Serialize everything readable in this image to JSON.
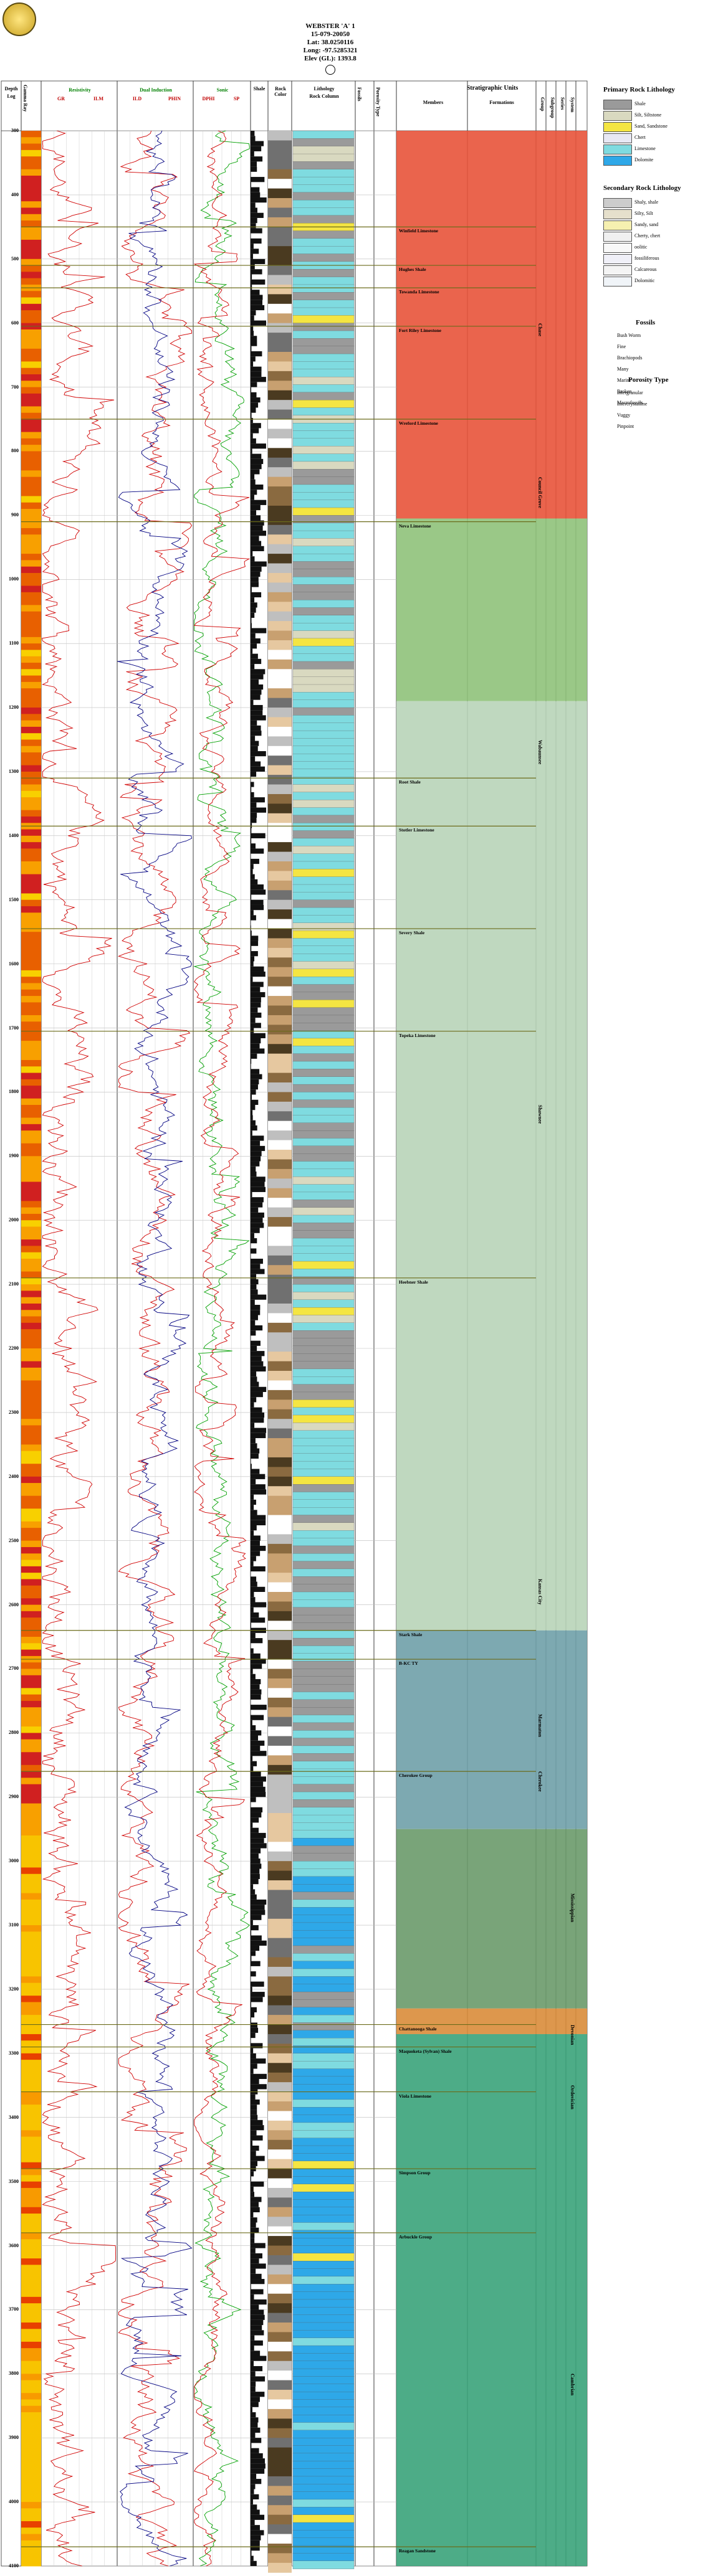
{
  "header": {
    "well_name": "WEBSTER 'A' 1",
    "api": "15-079-20050",
    "lat": "Lat: 38.0250116",
    "long": "Long: -97.5285321",
    "elev": "Elev (GL): 1393.8"
  },
  "columns": {
    "depth": "Depth",
    "log": "Log",
    "gamma": "Gamma Ray",
    "resistivity": "Resistivity",
    "resistivity_curves": [
      "GR",
      "ILM"
    ],
    "resistivity_scale": [
      "0  10",
      "0",
      "1000 0",
      "20"
    ],
    "neutron": "Dual Induction",
    "neutron_curves": [
      "ILD",
      "PHIN"
    ],
    "neutron_scale": [
      "0  10",
      "0",
      "1000 0",
      "20"
    ],
    "sonic": "Sonic",
    "sonic_curves": [
      "DPHI",
      "SP"
    ],
    "sonic_scale": [
      "0.3  0",
      "-30",
      "0",
      "0.1"
    ],
    "shale": "Shale",
    "rock_color": "Rock Color",
    "lithology": "Lithology",
    "rock_column": "Rock Column",
    "fossils": "Fossils",
    "porosity": "Porosity Type",
    "strat_units": "Stratigraphic Units",
    "members": "Members",
    "formations": "Formations",
    "groups": [
      "Group",
      "Subgroup",
      "Series",
      "System"
    ]
  },
  "depth_ticks": [
    "300",
    "400",
    "500",
    "600",
    "700",
    "800",
    "900",
    "1000",
    "1100",
    "1200",
    "1300",
    "1400",
    "1500",
    "1600",
    "1700",
    "1800",
    "1900",
    "2000",
    "2100",
    "2200",
    "2300",
    "2400",
    "2500",
    "2600",
    "2700",
    "2800",
    "2900",
    "3000",
    "3100",
    "3200",
    "3300",
    "3400",
    "3500",
    "3600",
    "3700",
    "3800",
    "3900",
    "4000",
    "4100"
  ],
  "members": [
    {
      "label": "Winfield Limestone",
      "depth": 450
    },
    {
      "label": "Hughes Shale",
      "depth": 510
    },
    {
      "label": "Towanda Limestone",
      "depth": 545
    },
    {
      "label": "Fort Riley Limestone",
      "depth": 605
    },
    {
      "label": "Wreford Limestone",
      "depth": 750
    },
    {
      "label": "Neva Limestone",
      "depth": 910
    },
    {
      "label": "Root Shale",
      "depth": 1310
    },
    {
      "label": "Stotler Limestone",
      "depth": 1385
    },
    {
      "label": "Severy Shale",
      "depth": 1545
    },
    {
      "label": "Topeka Limestone",
      "depth": 1705
    },
    {
      "label": "Heebner Shale",
      "depth": 2090
    },
    {
      "label": "Stark Shale",
      "depth": 2640
    },
    {
      "label": "B-KC TY",
      "depth": 2685
    },
    {
      "label": "Cherokee Group",
      "depth": 2860
    },
    {
      "label": "Chattanooga Shale",
      "depth": 3255
    },
    {
      "label": "Maquoketa (Sylvan) Shale",
      "depth": 3290
    },
    {
      "label": "Viola Limestone",
      "depth": 3360
    },
    {
      "label": "Simpson Group",
      "depth": 3480
    },
    {
      "label": "Arbuckle Group",
      "depth": 3580
    },
    {
      "label": "Reagan Sandstone",
      "depth": 4070
    }
  ],
  "formations": [
    {
      "label": "Chase",
      "depth": 600
    },
    {
      "label": "Council Grove",
      "depth": 840
    },
    {
      "label": "Wabaunsee",
      "depth": 1250
    },
    {
      "label": "Shawnee",
      "depth": 1820
    },
    {
      "label": "Kansas City",
      "depth": 2560
    },
    {
      "label": "Marmaton",
      "depth": 2770
    },
    {
      "label": "Cherokee",
      "depth": 2860
    },
    {
      "label": "Mississippian",
      "depth": 3050
    },
    {
      "label": "Devonian",
      "depth": 3255
    },
    {
      "label": "Ordovician",
      "depth": 3350
    },
    {
      "label": "Cambrian",
      "depth": 3800
    }
  ],
  "legend": {
    "primary_title": "Primary Rock Lithology",
    "primary": [
      {
        "name": "Shale",
        "color": "#9a9a9a"
      },
      {
        "name": "Silt, Siltstone",
        "color": "#d9d9c0"
      },
      {
        "name": "Sand, Sandstone",
        "color": "#f4e542"
      },
      {
        "name": "Chert",
        "color": "#e8e8f4"
      },
      {
        "name": "Limestone",
        "color": "#7fdbe0"
      },
      {
        "name": "Dolomite",
        "color": "#2ea8e8"
      }
    ],
    "secondary_title": "Secondary Rock Lithology",
    "secondary": [
      {
        "name": "Shaly, shale",
        "color": "#cccccc"
      },
      {
        "name": "Silty, Silt",
        "color": "#e6e0cc"
      },
      {
        "name": "Sandy, sand",
        "color": "#f6f0b0"
      },
      {
        "name": "Cherty, chert",
        "color": "#f0f0f0"
      },
      {
        "name": "oolitic",
        "color": "#f8f8f8"
      },
      {
        "name": "fossiliferous",
        "color": "#f0f0f8"
      },
      {
        "name": "Calcareous",
        "color": "#f4f4f4"
      },
      {
        "name": "Dolomitic",
        "color": "#f0f4f8"
      }
    ],
    "fossils_title": "Fossils",
    "fossils": [
      "Bush Worm",
      "Fine",
      "Brachiopods",
      "Many",
      "Marine",
      "Broken",
      "Macrofossils"
    ],
    "porosity_title": "Porosity Type",
    "porosity": [
      "Intergranular",
      "Intercrystalline",
      "Vuggy",
      "Pinpoint"
    ]
  }
}
